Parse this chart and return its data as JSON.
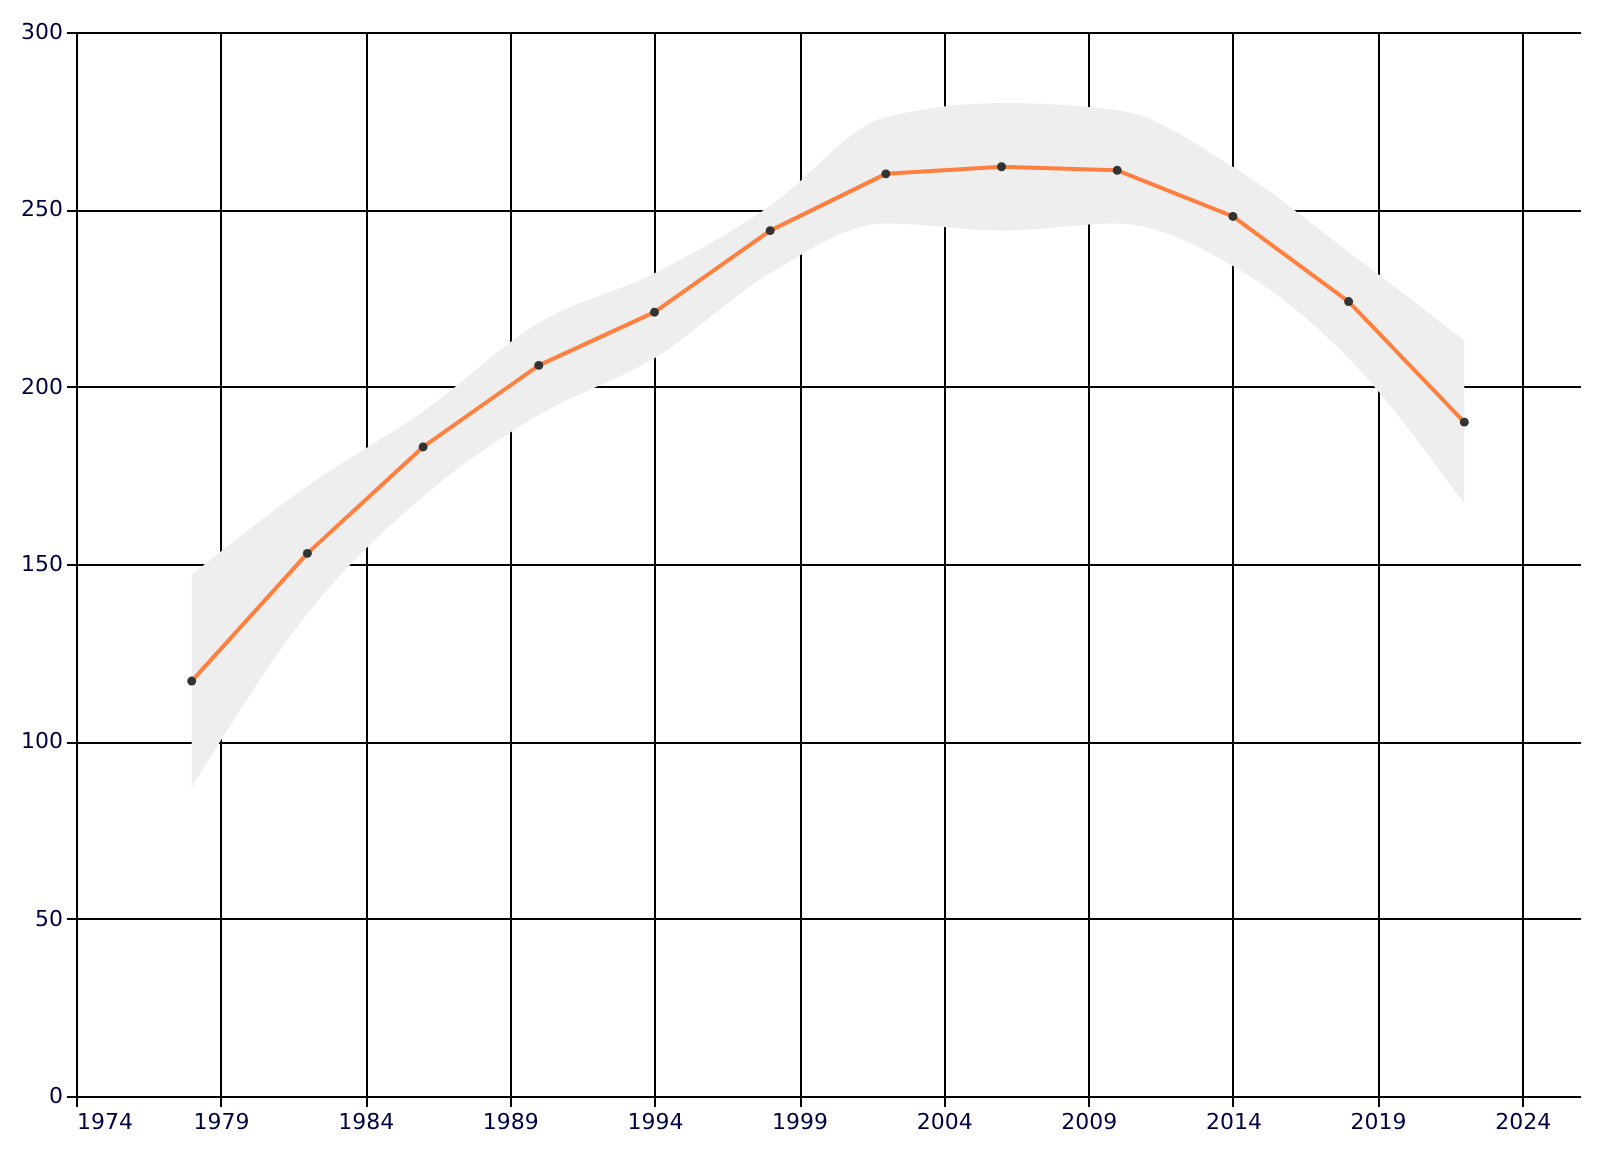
{
  "chart_data": {
    "type": "line",
    "x": [
      1978,
      1982,
      1986,
      1990,
      1994,
      1998,
      2002,
      2006,
      2010,
      2014,
      2018,
      2022
    ],
    "series": [
      {
        "color": "#ff7f3f",
        "values": [
          117,
          153,
          183,
          206,
          221,
          244,
          260,
          262,
          261,
          248,
          224,
          190
        ],
        "lower": [
          87,
          136,
          169,
          192,
          208,
          232,
          246,
          244,
          246,
          234,
          208,
          167
        ],
        "upper": [
          147,
          172,
          193,
          218,
          232,
          251,
          276,
          280,
          278,
          262,
          238,
          213
        ]
      }
    ],
    "xlim": [
      1974,
      2026
    ],
    "xticks": [
      1974,
      1979,
      1984,
      1989,
      1994,
      1999,
      2004,
      2009,
      2014,
      2019,
      2024
    ],
    "ylim": [
      0,
      300
    ],
    "yticks": [
      0,
      50,
      100,
      150,
      200,
      250,
      300
    ],
    "grid": true,
    "marker": "circle",
    "line_style": "solid"
  }
}
